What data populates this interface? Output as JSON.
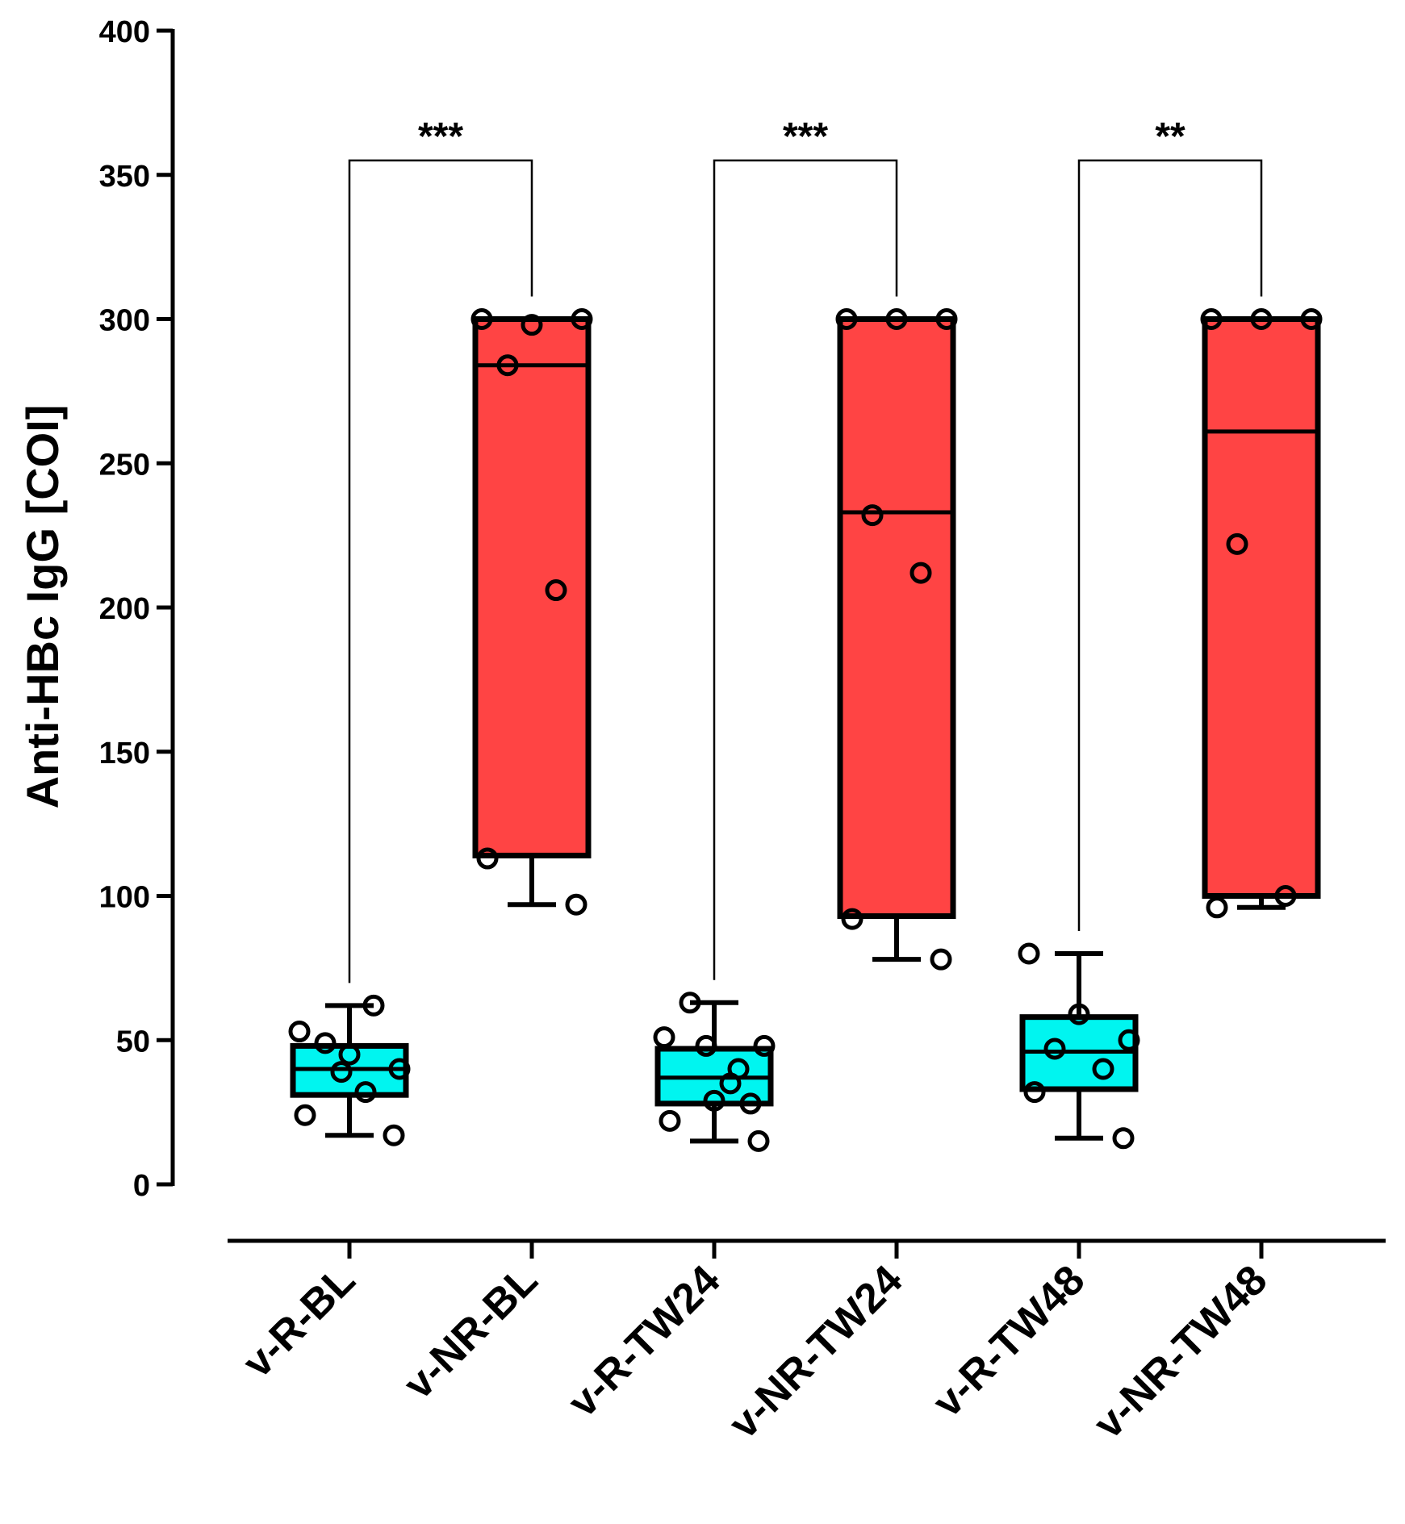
{
  "chart_data": {
    "type": "box",
    "ylabel": "Anti-HBc IgG [COI]",
    "xlabel": "",
    "ylim": [
      0,
      400
    ],
    "yticks": [
      "0",
      "50",
      "100",
      "150",
      "200",
      "250",
      "300",
      "350",
      "400"
    ],
    "categories": [
      "v-R-BL",
      "v-NR-BL",
      "v-R-TW24",
      "v-NR-TW24",
      "v-R-TW48",
      "v-NR-TW48"
    ],
    "colors": {
      "responder": "#00f5f0",
      "non_responder": "#ff4444",
      "stroke": "#000000"
    },
    "groups": [
      {
        "name": "v-R-BL",
        "color": "#00f5f0",
        "min": 17,
        "q1": 31,
        "median": 40,
        "q3": 48,
        "max": 62,
        "points": [
          53,
          45,
          40,
          49,
          62,
          24,
          17,
          39,
          32
        ]
      },
      {
        "name": "v-NR-BL",
        "color": "#ff4444",
        "min": 97,
        "q1": 114,
        "median": 284,
        "q3": 300,
        "max": 300,
        "points": [
          300,
          298,
          300,
          284,
          206,
          113,
          97
        ]
      },
      {
        "name": "v-R-TW24",
        "color": "#00f5f0",
        "min": 15,
        "q1": 28,
        "median": 37,
        "q3": 47,
        "max": 63,
        "points": [
          51,
          29,
          48,
          63,
          40,
          22,
          15,
          48,
          35,
          28
        ]
      },
      {
        "name": "v-NR-TW24",
        "color": "#ff4444",
        "min": 78,
        "q1": 93,
        "median": 233,
        "q3": 300,
        "max": 300,
        "points": [
          300,
          300,
          300,
          232,
          212,
          92,
          78
        ]
      },
      {
        "name": "v-R-TW48",
        "color": "#00f5f0",
        "min": 16,
        "q1": 33,
        "median": 46,
        "q3": 58,
        "max": 80,
        "points": [
          80,
          59,
          50,
          47,
          40,
          32,
          16
        ]
      },
      {
        "name": "v-NR-TW48",
        "color": "#ff4444",
        "min": 96,
        "q1": 100,
        "median": 261,
        "q3": 300,
        "max": 300,
        "points": [
          300,
          300,
          300,
          222,
          100,
          96
        ]
      }
    ],
    "significance": [
      {
        "from": "v-R-BL",
        "to": "v-NR-BL",
        "label": "***",
        "y": 355
      },
      {
        "from": "v-R-TW24",
        "to": "v-NR-TW24",
        "label": "***",
        "y": 355
      },
      {
        "from": "v-R-TW48",
        "to": "v-NR-TW48",
        "label": "**",
        "y": 355
      }
    ]
  }
}
